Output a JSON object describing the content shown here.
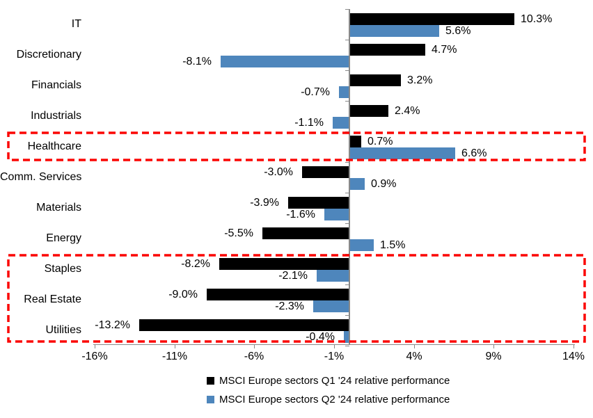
{
  "chart_data": {
    "type": "bar",
    "orientation": "horizontal",
    "title": "",
    "categories": [
      "IT",
      "Discretionary",
      "Financials",
      "Industrials",
      "Healthcare",
      "Comm. Services",
      "Materials",
      "Energy",
      "Staples",
      "Real Estate",
      "Utilities"
    ],
    "series": [
      {
        "name": "MSCI Europe sectors Q1 '24 relative performance",
        "color": "#000000",
        "values": [
          10.3,
          4.7,
          3.2,
          2.4,
          0.7,
          -3.0,
          -3.9,
          -5.5,
          -8.2,
          -9.0,
          -13.2
        ],
        "labels": [
          "10.3%",
          "4.7%",
          "3.2%",
          "2.4%",
          "0.7%",
          "-3.0%",
          "-3.9%",
          "-5.5%",
          "-8.2%",
          "-9.0%",
          "-13.2%"
        ]
      },
      {
        "name": "MSCI Europe sectors Q2 '24 relative performance",
        "color": "#4E86BC",
        "values": [
          5.6,
          -8.1,
          -0.7,
          -1.1,
          6.6,
          0.9,
          -1.6,
          1.5,
          -2.1,
          -2.3,
          -0.4
        ],
        "labels": [
          "5.6%",
          "-8.1%",
          "-0.7%",
          "-1.1%",
          "6.6%",
          "0.9%",
          "-1.6%",
          "1.5%",
          "-2.1%",
          "-2.3%",
          "-0.4%"
        ]
      }
    ],
    "x_axis": {
      "tick_labels": [
        "-16%",
        "-11%",
        "-6%",
        "-1%",
        "4%",
        "9%",
        "14%"
      ],
      "tick_values": [
        -16,
        -11,
        -6,
        -1,
        4,
        9,
        14
      ],
      "min": -16,
      "max": 14,
      "grid": false
    },
    "legend_position": "bottom",
    "highlights": [
      {
        "from": "Healthcare",
        "to": "Healthcare"
      },
      {
        "from": "Staples",
        "to": "Utilities"
      }
    ],
    "highlight_color": "#FB0604"
  }
}
